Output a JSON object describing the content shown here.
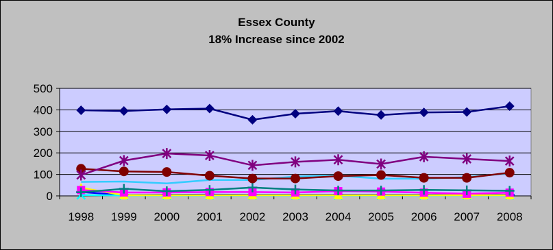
{
  "chart_data": {
    "type": "line",
    "title": "Essex County",
    "subtitle": "18% Increase since 2002",
    "xlabel": "",
    "ylabel": "",
    "ylim": [
      0,
      500
    ],
    "yticks": [
      0,
      100,
      200,
      300,
      400,
      500
    ],
    "categories": [
      "1998",
      "1999",
      "2000",
      "2001",
      "2002",
      "2003",
      "2004",
      "2005",
      "2006",
      "2007",
      "2008"
    ],
    "grid": true,
    "plot_background": "#ccccff",
    "series": [
      {
        "color": "#000080",
        "marker": "diamond",
        "values": [
          398,
          395,
          402,
          406,
          354,
          382,
          394,
          376,
          388,
          390,
          417
        ]
      },
      {
        "color": "#800080",
        "marker": "star",
        "values": [
          97,
          164,
          197,
          188,
          142,
          158,
          168,
          148,
          182,
          172,
          162
        ]
      },
      {
        "color": "#800000",
        "marker": "circle",
        "values": [
          126,
          114,
          111,
          94,
          81,
          81,
          92,
          97,
          84,
          84,
          108
        ]
      },
      {
        "color": "#33ccff",
        "marker": "none",
        "values": [
          65,
          67,
          58,
          74,
          74,
          90,
          94,
          80,
          80,
          87,
          105
        ]
      },
      {
        "color": "#008080",
        "marker": "plus",
        "values": [
          17,
          33,
          22,
          28,
          39,
          30,
          25,
          25,
          28,
          26,
          24
        ]
      },
      {
        "color": "#ff00ff",
        "marker": "square",
        "values": [
          27,
          16,
          16,
          18,
          18,
          16,
          22,
          20,
          15,
          10,
          15
        ]
      },
      {
        "color": "#ffff00",
        "marker": "triangle",
        "values": [
          38,
          3,
          3,
          3,
          3,
          3,
          3,
          3,
          3,
          3,
          3
        ]
      },
      {
        "color": "#00ffff",
        "marker": "x",
        "values": [
          4,
          2,
          2,
          2,
          2,
          2,
          2,
          2,
          2,
          2,
          2
        ]
      },
      {
        "color": "#0000ff",
        "marker": "dash",
        "values": [
          18,
          4,
          5,
          6,
          5,
          5,
          5,
          5,
          5,
          5,
          5
        ]
      }
    ]
  }
}
